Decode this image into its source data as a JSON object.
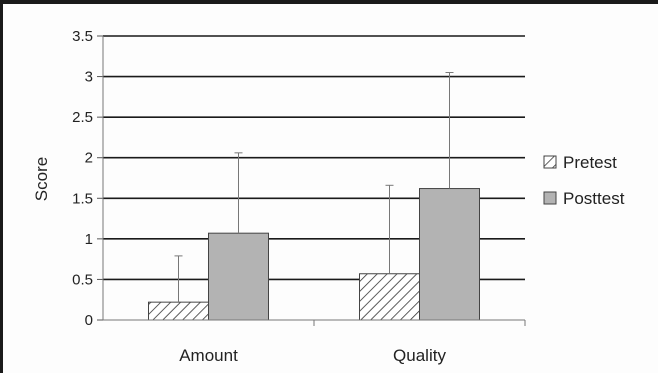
{
  "chart_data": {
    "type": "bar",
    "categories": [
      "Amount",
      "Quality"
    ],
    "series": [
      {
        "name": "Pretest",
        "values": [
          0.22,
          0.57
        ],
        "error_upper": [
          0.57,
          1.09
        ],
        "color": "#ffffff",
        "pattern": "diagonal-hatch"
      },
      {
        "name": "Posttest",
        "values": [
          1.07,
          1.62
        ],
        "error_upper": [
          0.99,
          1.43
        ],
        "color": "#b3b3b3",
        "pattern": "solid"
      }
    ],
    "title": "",
    "xlabel": "",
    "ylabel": "Score",
    "ylim": [
      0,
      3.5
    ],
    "yticks": [
      "0",
      "0.5",
      "1",
      "1.5",
      "2",
      "2.5",
      "3",
      "3.5"
    ],
    "grid": "horizontal",
    "legend_position": "right"
  }
}
